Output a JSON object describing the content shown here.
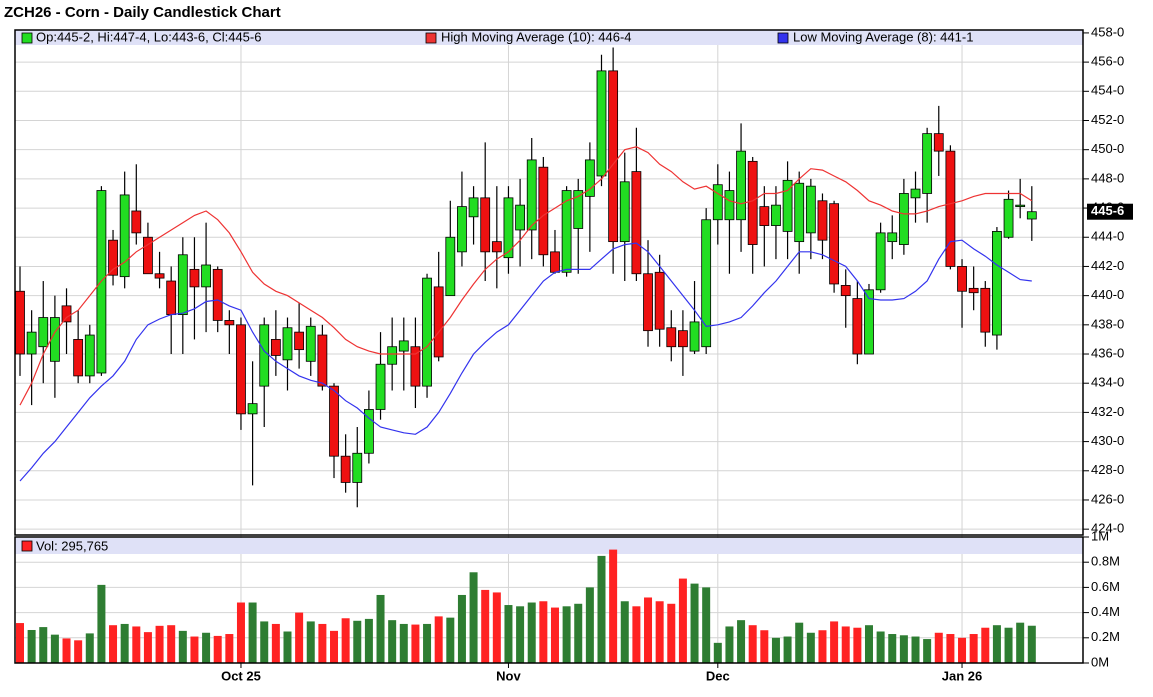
{
  "chart_data": {
    "type": "candlestick",
    "title": "ZCH26 - Corn - Daily Candlestick Chart",
    "legend_label": "Op:445-2, Hi:447-4, Lo:443-6, Cl:445-6",
    "last_price_label": "445-6",
    "up_color": "#22dd22",
    "down_color": "#ee1111",
    "grid": true,
    "categories": [
      null,
      null,
      null,
      null,
      null,
      null,
      null,
      null,
      null,
      null,
      null,
      null,
      null,
      null,
      null,
      null,
      null,
      null,
      null,
      "Oct 25",
      null,
      null,
      null,
      null,
      null,
      null,
      null,
      null,
      null,
      null,
      null,
      null,
      null,
      null,
      null,
      null,
      null,
      null,
      null,
      null,
      null,
      null,
      "Nov",
      null,
      null,
      null,
      null,
      null,
      null,
      null,
      null,
      null,
      null,
      null,
      null,
      null,
      null,
      null,
      null,
      null,
      "Dec",
      null,
      null,
      null,
      null,
      null,
      null,
      null,
      null,
      null,
      null,
      null,
      null,
      null,
      null,
      null,
      null,
      null,
      null,
      null,
      null,
      "Jan 26",
      null,
      null,
      null,
      null,
      null,
      null
    ],
    "open": [
      440.3,
      436,
      436.5,
      435.5,
      439.3,
      437,
      434.5,
      434.7,
      443.8,
      441.3,
      445.8,
      444,
      441.5,
      441,
      438.7,
      441.8,
      440.6,
      441.8,
      438.3,
      438,
      431.9,
      433.8,
      437,
      435.6,
      437.5,
      435.5,
      437.3,
      433.8,
      429,
      427.2,
      429.2,
      432.2,
      435.3,
      436.2,
      436.5,
      433.8,
      440.6,
      440,
      443,
      445.4,
      446.7,
      443.7,
      442.6,
      444.5,
      444.5,
      448.8,
      443,
      441.6,
      444.6,
      446.8,
      448.2,
      455.4,
      443.7,
      448.5,
      441.5,
      441.6,
      437.8,
      437.6,
      436.2,
      436.5,
      445.2,
      445.2,
      445.2,
      449.2,
      446.1,
      444.8,
      444.4,
      443.7,
      444.3,
      446.5,
      446.3,
      440.7,
      439.8,
      436,
      440.4,
      443.7,
      443.5,
      446.7,
      447,
      451.1,
      449.9,
      442,
      440.5,
      440.5,
      437.3,
      444,
      446.1,
      445.25
    ],
    "high": [
      442,
      439,
      441,
      440,
      440.5,
      439,
      438,
      447.5,
      444.5,
      448.5,
      449,
      445,
      443,
      442,
      444,
      444,
      445,
      442,
      439,
      438.5,
      435.5,
      438.5,
      439,
      438.5,
      439.5,
      438.5,
      438,
      434,
      430.5,
      431,
      433.5,
      437.5,
      438.5,
      438.5,
      438.5,
      441.5,
      443,
      446.5,
      448.5,
      447.5,
      450.5,
      447.5,
      447.5,
      448,
      450.8,
      449.5,
      444.5,
      447.5,
      448,
      450.5,
      456.5,
      457,
      449.8,
      451.5,
      443.8,
      442.8,
      439,
      439,
      441,
      446,
      449,
      448.5,
      451.8,
      449.5,
      447.5,
      447.5,
      449.2,
      448.5,
      448,
      447,
      446.5,
      441.8,
      441,
      440.8,
      445,
      445.5,
      448,
      448.5,
      451.5,
      453,
      450.3,
      442.5,
      442,
      441,
      444.7,
      447.2,
      448,
      447.5
    ],
    "low": [
      434.5,
      432.5,
      434,
      433,
      436,
      434,
      434,
      434.5,
      440.7,
      440.5,
      443.5,
      441.5,
      440.5,
      436,
      436,
      437,
      437.5,
      437.5,
      436,
      430.8,
      427,
      431,
      434.5,
      433.5,
      435,
      434.5,
      433.5,
      427.5,
      426.5,
      425.5,
      428.5,
      431.5,
      433.5,
      433.5,
      432.3,
      433,
      435.5,
      440,
      442,
      443.5,
      441,
      440.5,
      441.5,
      442,
      442.5,
      442,
      441.5,
      441.3,
      441.5,
      443,
      447.5,
      441.5,
      441,
      441,
      436.5,
      436.5,
      435.5,
      434.5,
      436,
      436,
      443.5,
      441.5,
      443,
      441.5,
      442,
      442.5,
      442.5,
      441.5,
      442.5,
      442.5,
      440.2,
      437.8,
      435.3,
      436,
      440.2,
      442.5,
      442.8,
      445,
      445,
      448.2,
      441.8,
      437.8,
      439,
      436.5,
      436.3,
      443.9,
      445.3,
      443.75
    ],
    "close": [
      436,
      437.5,
      438.5,
      438.5,
      438.2,
      434.5,
      437.3,
      447.2,
      441.4,
      446.9,
      444.3,
      441.5,
      441.2,
      438.7,
      442.8,
      440.6,
      442.1,
      438.3,
      438,
      431.9,
      432.6,
      438,
      435.9,
      437.8,
      436.3,
      437.9,
      433.8,
      429,
      427.2,
      429.2,
      432.2,
      435.3,
      436.5,
      436.9,
      433.8,
      441.2,
      435.8,
      444,
      446.1,
      446.7,
      443,
      443,
      446.7,
      446.2,
      449.3,
      442.8,
      441.6,
      447.2,
      447.2,
      449.3,
      455.4,
      443.7,
      447.8,
      441.5,
      437.6,
      437.7,
      436.5,
      436.5,
      438.2,
      445.2,
      447.6,
      447.2,
      449.9,
      443.5,
      444.8,
      446.2,
      447.9,
      447.7,
      447.5,
      443.8,
      440.8,
      440,
      436,
      440.4,
      444.3,
      444.3,
      447,
      447.3,
      451.1,
      449.9,
      442,
      440.3,
      440.2,
      437.5,
      444.4,
      446.6,
      446.2,
      445.75
    ],
    "series": [
      {
        "name": "High Moving Average (10): 446-4",
        "color": "#ee3333",
        "values": [
          432.5,
          434,
          436,
          437.5,
          438.5,
          439,
          440,
          441,
          441.8,
          442.3,
          443,
          443.5,
          444,
          444.5,
          445,
          445.5,
          445.8,
          445.2,
          444.3,
          443,
          441.6,
          440.8,
          440.3,
          440,
          439.5,
          439,
          438.5,
          437.8,
          437,
          436.5,
          436.2,
          436,
          436,
          436,
          436,
          436.5,
          437.5,
          438.5,
          439.7,
          440.8,
          441.8,
          442.5,
          443,
          443.8,
          444.8,
          445.5,
          446,
          446.5,
          446.8,
          447.3,
          448,
          449,
          450,
          450.2,
          449.8,
          449,
          448.5,
          447.8,
          447.3,
          447.5,
          447,
          446.5,
          446.3,
          446.5,
          447,
          447,
          447.2,
          448,
          448.7,
          448.6,
          448.2,
          447.8,
          447.2,
          446.5,
          446.2,
          445.8,
          445.6,
          445.6,
          445.8,
          446.1,
          446.3,
          446.5,
          446.8,
          447,
          447,
          447,
          447,
          446.5
        ]
      },
      {
        "name": "Low Moving Average (8): 441-1",
        "color": "#3333ee",
        "values": [
          427.3,
          428.2,
          429.2,
          430,
          431,
          432,
          433,
          433.8,
          434.5,
          435.5,
          437,
          438,
          438.4,
          438.7,
          438.8,
          439.1,
          439.6,
          439.7,
          439.3,
          439,
          437.5,
          436.2,
          435.5,
          435,
          434.5,
          434.2,
          434,
          433.5,
          432.8,
          432.3,
          431.6,
          431,
          430.8,
          430.6,
          430.5,
          431,
          432,
          433.3,
          434.7,
          436,
          436.8,
          437.5,
          438,
          439,
          440,
          441,
          441.6,
          441.8,
          441.8,
          441.8,
          442.5,
          443.2,
          443.5,
          443.6,
          443,
          442,
          441,
          440,
          439,
          437.9,
          438,
          438.2,
          438.5,
          439.3,
          440.2,
          441,
          442,
          443,
          443,
          442.8,
          442.4,
          442,
          441,
          439.8,
          439.7,
          439.7,
          439.8,
          440.3,
          441,
          442.5,
          443.7,
          443.8,
          443.2,
          442.7,
          442.1,
          441.6,
          441.1,
          441
        ]
      }
    ],
    "ylim": [
      423.6,
      458.2
    ],
    "yticks": [
      {
        "value": 424,
        "label": "424-0"
      },
      {
        "value": 426,
        "label": "426-0"
      },
      {
        "value": 428,
        "label": "428-0"
      },
      {
        "value": 430,
        "label": "430-0"
      },
      {
        "value": 432,
        "label": "432-0"
      },
      {
        "value": 434,
        "label": "434-0"
      },
      {
        "value": 436,
        "label": "436-0"
      },
      {
        "value": 438,
        "label": "438-0"
      },
      {
        "value": 440,
        "label": "440-0"
      },
      {
        "value": 442,
        "label": "442-0"
      },
      {
        "value": 444,
        "label": "444-0"
      },
      {
        "value": 446,
        "label": "446-0"
      },
      {
        "value": 448,
        "label": "448-0"
      },
      {
        "value": 450,
        "label": "450-0"
      },
      {
        "value": 452,
        "label": "452-0"
      },
      {
        "value": 454,
        "label": "454-0"
      },
      {
        "value": 456,
        "label": "456-0"
      },
      {
        "value": 458,
        "label": "458-0"
      }
    ],
    "volume": {
      "label": "Vol: 295,765",
      "up_color": "#2e7d32",
      "down_color": "#ff2222",
      "values": [
        317000,
        262000,
        285000,
        225000,
        195000,
        180000,
        235000,
        620000,
        300000,
        310000,
        290000,
        245000,
        295000,
        300000,
        255000,
        210000,
        240000,
        215000,
        230000,
        480000,
        480000,
        330000,
        310000,
        250000,
        400000,
        330000,
        310000,
        255000,
        355000,
        335000,
        350000,
        540000,
        340000,
        310000,
        305000,
        310000,
        370000,
        360000,
        540000,
        720000,
        580000,
        560000,
        460000,
        450000,
        480000,
        490000,
        440000,
        450000,
        470000,
        600000,
        850000,
        900000,
        490000,
        450000,
        520000,
        490000,
        470000,
        670000,
        630000,
        600000,
        160000,
        290000,
        340000,
        300000,
        260000,
        200000,
        210000,
        320000,
        240000,
        260000,
        330000,
        290000,
        280000,
        300000,
        250000,
        230000,
        220000,
        210000,
        190000,
        240000,
        230000,
        200000,
        230000,
        280000,
        300000,
        280000,
        320000,
        295765
      ],
      "ylim": [
        0,
        1000000
      ],
      "yticks": [
        {
          "value": 0,
          "label": "0M"
        },
        {
          "value": 200000,
          "label": "0.2M"
        },
        {
          "value": 400000,
          "label": "0.4M"
        },
        {
          "value": 600000,
          "label": "0.6M"
        },
        {
          "value": 800000,
          "label": "0.8M"
        },
        {
          "value": 1000000,
          "label": "1M"
        }
      ]
    }
  }
}
